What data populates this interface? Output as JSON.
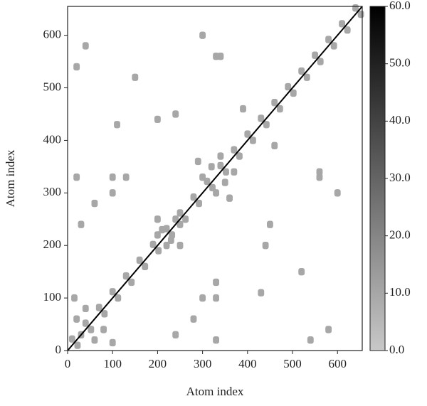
{
  "chart_data": {
    "type": "heatmap",
    "xlabel": "Atom index",
    "ylabel": "Atom index",
    "xlim": [
      0,
      655
    ],
    "ylim": [
      0,
      655
    ],
    "xticks": [
      0,
      100,
      200,
      300,
      400,
      500,
      600
    ],
    "yticks": [
      0,
      100,
      200,
      300,
      400,
      500,
      600
    ],
    "clim": [
      0,
      60
    ],
    "cticks": [
      {
        "value": 0,
        "label": "0.0"
      },
      {
        "value": 10,
        "label": "10.0"
      },
      {
        "value": 20,
        "label": "20.0"
      },
      {
        "value": 30,
        "label": "30.0"
      },
      {
        "value": 40,
        "label": "40.0"
      },
      {
        "value": 50,
        "label": "50.0"
      },
      {
        "value": 60,
        "label": "60.0"
      }
    ],
    "colormap": [
      "#c8c8c8",
      "#000000"
    ],
    "diagonal_value": 60,
    "cells": {
      "x": [
        10,
        22,
        40,
        52,
        70,
        82,
        100,
        112,
        130,
        142,
        160,
        172,
        190,
        202,
        220,
        232,
        250,
        262,
        280,
        292,
        310,
        322,
        340,
        352,
        370,
        382,
        400,
        412,
        430,
        442,
        460,
        472,
        490,
        502,
        520,
        532,
        550,
        562,
        580,
        592,
        610,
        622,
        640,
        652,
        30,
        60,
        20,
        15,
        100,
        40,
        80,
        210,
        230,
        240,
        250,
        200,
        250,
        220,
        200,
        300,
        330,
        320,
        350,
        290,
        360,
        340,
        370,
        40,
        580,
        20,
        540,
        100,
        330,
        130,
        330,
        20,
        330,
        300,
        600,
        330,
        560,
        460,
        390,
        450,
        240,
        200,
        440,
        560,
        340,
        150,
        520,
        240,
        30,
        300,
        100,
        280,
        60,
        430,
        110
      ],
      "y": [
        22,
        10,
        52,
        40,
        82,
        70,
        112,
        100,
        142,
        130,
        172,
        160,
        202,
        190,
        232,
        220,
        262,
        250,
        292,
        280,
        322,
        310,
        352,
        340,
        382,
        370,
        412,
        400,
        442,
        430,
        472,
        460,
        502,
        490,
        532,
        520,
        562,
        550,
        592,
        580,
        622,
        610,
        652,
        640,
        30,
        20,
        60,
        100,
        15,
        80,
        40,
        230,
        210,
        250,
        240,
        250,
        200,
        200,
        220,
        330,
        300,
        350,
        320,
        360,
        290,
        370,
        340,
        580,
        40,
        540,
        20,
        330,
        100,
        330,
        130,
        330,
        20,
        600,
        300,
        560,
        330,
        390,
        460,
        240,
        450,
        440,
        200,
        340,
        560,
        520,
        150,
        30,
        240,
        100,
        300,
        60,
        280,
        110,
        430
      ],
      "values": [
        10,
        10,
        10,
        10,
        10,
        10,
        10,
        10,
        10,
        10,
        10,
        10,
        10,
        10,
        10,
        10,
        10,
        10,
        10,
        10,
        10,
        10,
        10,
        10,
        10,
        10,
        10,
        10,
        10,
        10,
        10,
        10,
        10,
        10,
        10,
        10,
        10,
        10,
        10,
        10,
        10,
        10,
        10,
        10,
        10,
        10,
        10,
        10,
        10,
        10,
        10,
        10,
        10,
        10,
        10,
        10,
        10,
        10,
        10,
        10,
        10,
        10,
        10,
        10,
        10,
        10,
        10,
        10,
        10,
        10,
        10,
        10,
        10,
        10,
        10,
        10,
        10,
        10,
        10,
        10,
        10,
        10,
        10,
        10,
        10,
        10,
        10,
        10,
        10,
        10,
        10,
        10,
        10,
        10,
        10,
        10,
        10,
        10,
        10
      ]
    }
  }
}
